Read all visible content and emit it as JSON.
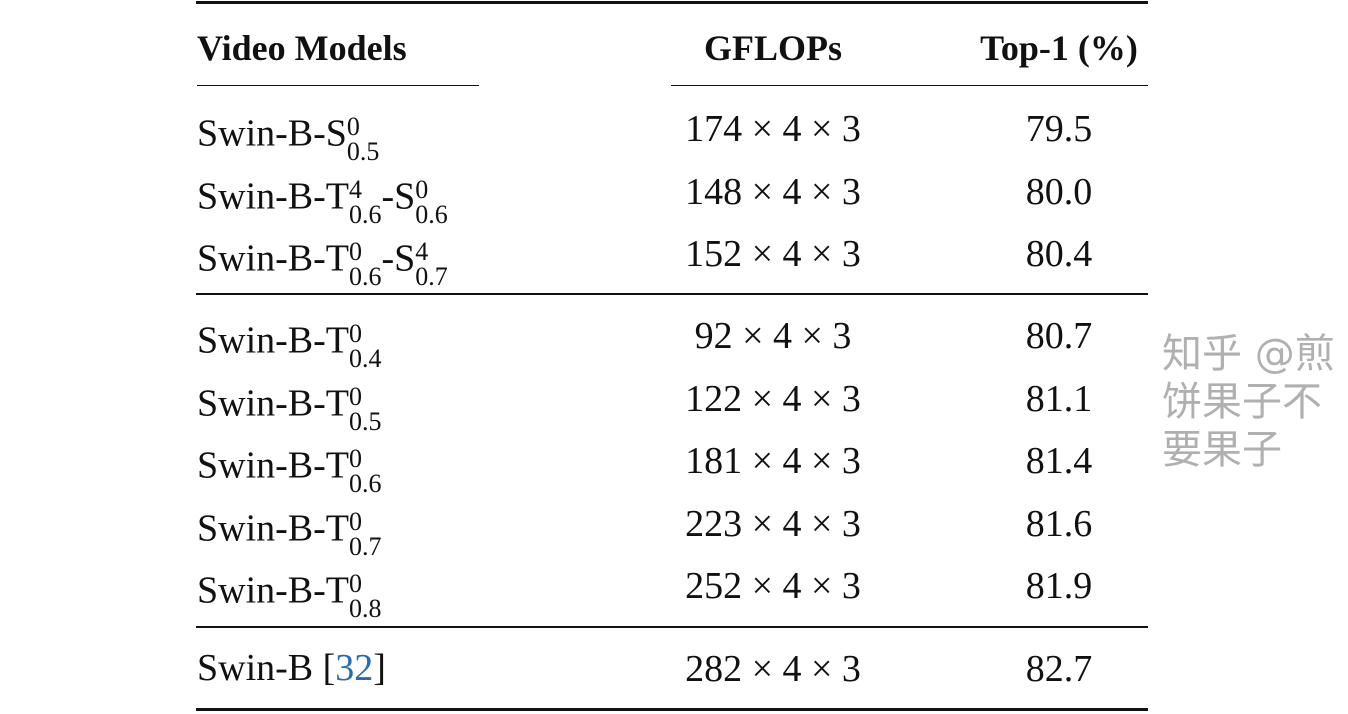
{
  "table": {
    "headers": {
      "model": "Video Models",
      "gflops": "GFLOPs",
      "top1": "Top-1 (%)"
    },
    "groups": [
      [
        {
          "model": [
            {
              "text": "Swin-B-S",
              "sup": "0",
              "sub": "0.5"
            }
          ],
          "gflops": "174 × 4 × 3",
          "top1": "79.5"
        },
        {
          "model": [
            {
              "text": "Swin-B-T",
              "sup": "4",
              "sub": "0.6"
            },
            {
              "text": "-S",
              "sup": "0",
              "sub": "0.6"
            }
          ],
          "gflops": "148 × 4 × 3",
          "top1": "80.0"
        },
        {
          "model": [
            {
              "text": "Swin-B-T",
              "sup": "0",
              "sub": "0.6"
            },
            {
              "text": "-S",
              "sup": "4",
              "sub": "0.7"
            }
          ],
          "gflops": "152 × 4 × 3",
          "top1": "80.4"
        }
      ],
      [
        {
          "model": [
            {
              "text": "Swin-B-T",
              "sup": "0",
              "sub": "0.4"
            }
          ],
          "gflops": "92 × 4 × 3",
          "top1": "80.7"
        },
        {
          "model": [
            {
              "text": "Swin-B-T",
              "sup": "0",
              "sub": "0.5"
            }
          ],
          "gflops": "122 × 4 × 3",
          "top1": "81.1"
        },
        {
          "model": [
            {
              "text": "Swin-B-T",
              "sup": "0",
              "sub": "0.6"
            }
          ],
          "gflops": "181 × 4 × 3",
          "top1": "81.4"
        },
        {
          "model": [
            {
              "text": "Swin-B-T",
              "sup": "0",
              "sub": "0.7"
            }
          ],
          "gflops": "223 × 4 × 3",
          "top1": "81.6"
        },
        {
          "model": [
            {
              "text": "Swin-B-T",
              "sup": "0",
              "sub": "0.8"
            }
          ],
          "gflops": "252 × 4 × 3",
          "top1": "81.9"
        }
      ],
      [
        {
          "model": [
            {
              "text": "Swin-B [",
              "cite": "32",
              "after": "]"
            }
          ],
          "gflops": "282 × 4 × 3",
          "top1": "82.7"
        }
      ]
    ],
    "cite_color": "#2a6bb0"
  },
  "watermark": "知乎 @煎饼果子不要果子"
}
